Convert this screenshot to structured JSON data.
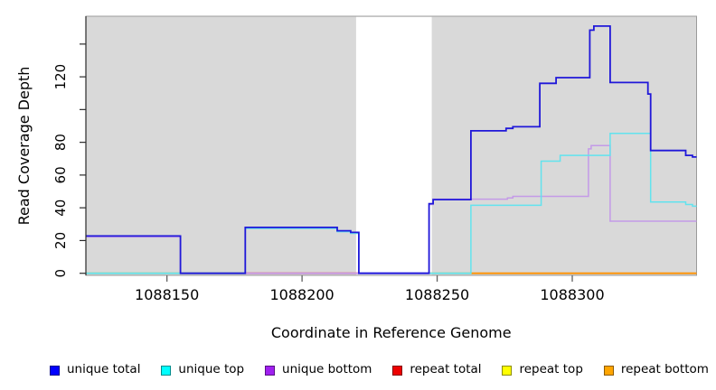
{
  "chart_data": {
    "type": "line",
    "subtype": "step-coverage",
    "title": "",
    "xlabel": "Coordinate in Reference Genome",
    "ylabel": "Read Coverage Depth",
    "x_range": [
      1088120,
      1088346
    ],
    "y_range": [
      0,
      157
    ],
    "grid": false,
    "panel_background": "#d9d9d9",
    "panel_border": "#9a9a9a",
    "no_data_region": {
      "x0": 1088220,
      "x1": 1088248,
      "color": "#ffffff"
    },
    "x_ticks": [
      1088150,
      1088200,
      1088250,
      1088300
    ],
    "x_tick_labels": [
      "1088150",
      "1088200",
      "1088250",
      "1088300"
    ],
    "y_ticks": [
      0,
      20,
      40,
      60,
      80,
      100,
      120,
      140
    ],
    "y_tick_labels": [
      "0",
      "20",
      "40",
      "60",
      "80",
      "",
      "120",
      ""
    ],
    "series": [
      {
        "name": "unique bottom",
        "color": "#c49ae8",
        "points": [
          [
            1088120,
            22.2
          ],
          [
            1088155,
            0
          ],
          [
            1088247,
            42
          ],
          [
            1088248.5,
            45.3
          ],
          [
            1088276,
            46
          ],
          [
            1088278,
            47
          ],
          [
            1088306,
            76
          ],
          [
            1088307,
            78
          ],
          [
            1088314,
            31.8
          ]
        ]
      },
      {
        "name": "unique top",
        "color": "#62e3ee",
        "points": [
          [
            1088120,
            0
          ],
          [
            1088179,
            27.4
          ],
          [
            1088213,
            25.4
          ],
          [
            1088218,
            24.4
          ],
          [
            1088221,
            0
          ],
          [
            1088262.5,
            41.5
          ],
          [
            1088288.5,
            68.5
          ],
          [
            1088295.5,
            72
          ],
          [
            1088314,
            85.5
          ],
          [
            1088329,
            43.5
          ],
          [
            1088342,
            42
          ],
          [
            1088344.5,
            41
          ]
        ]
      },
      {
        "name": "unique total",
        "color": "#2018d9",
        "points": [
          [
            1088120,
            22.8
          ],
          [
            1088155,
            0
          ],
          [
            1088179,
            28
          ],
          [
            1088213,
            26
          ],
          [
            1088218,
            25
          ],
          [
            1088221,
            0
          ],
          [
            1088247,
            42.5
          ],
          [
            1088248.5,
            45
          ],
          [
            1088262.5,
            87
          ],
          [
            1088275.5,
            88.5
          ],
          [
            1088278,
            89.5
          ],
          [
            1088288,
            116
          ],
          [
            1088294,
            119.5
          ],
          [
            1088306.5,
            148.5
          ],
          [
            1088308,
            151
          ],
          [
            1088314,
            116.5
          ],
          [
            1088328,
            109.5
          ],
          [
            1088329,
            75
          ],
          [
            1088342,
            72
          ],
          [
            1088344.5,
            71
          ]
        ]
      }
    ],
    "baseline_zero_segments": [
      {
        "label": "repeat series at zero (left)",
        "x0": 1088120,
        "x1": 1088179,
        "y": 0,
        "color": "#7fce8a"
      },
      {
        "label": "repeat total at zero",
        "x0": 1088179,
        "x1": 1088221,
        "y": 0,
        "color": "#e0486e"
      },
      {
        "label": "unique series at zero in gap",
        "x0": 1088221,
        "x1": 1088247,
        "y": 0,
        "color": "#5b55ee"
      },
      {
        "label": "repeat series at zero (mid)",
        "x0": 1088247,
        "x1": 1088262.5,
        "y": 0,
        "color": "#7fce8a"
      },
      {
        "label": "repeat bottom at zero",
        "x0": 1088262.5,
        "x1": 1088346,
        "y": 0,
        "color": "#ff9100"
      }
    ],
    "legend_position": "bottom"
  },
  "legend": {
    "items": [
      {
        "label": "unique total",
        "swatch_color": "#0000ff"
      },
      {
        "label": "unique top",
        "swatch_color": "#00ffff"
      },
      {
        "label": "unique bottom",
        "swatch_color": "#a020f0"
      },
      {
        "label": "repeat total",
        "swatch_color": "#ee0000"
      },
      {
        "label": "repeat top",
        "swatch_color": "#ffff00"
      },
      {
        "label": "repeat bottom",
        "swatch_color": "#ffa500"
      }
    ]
  }
}
